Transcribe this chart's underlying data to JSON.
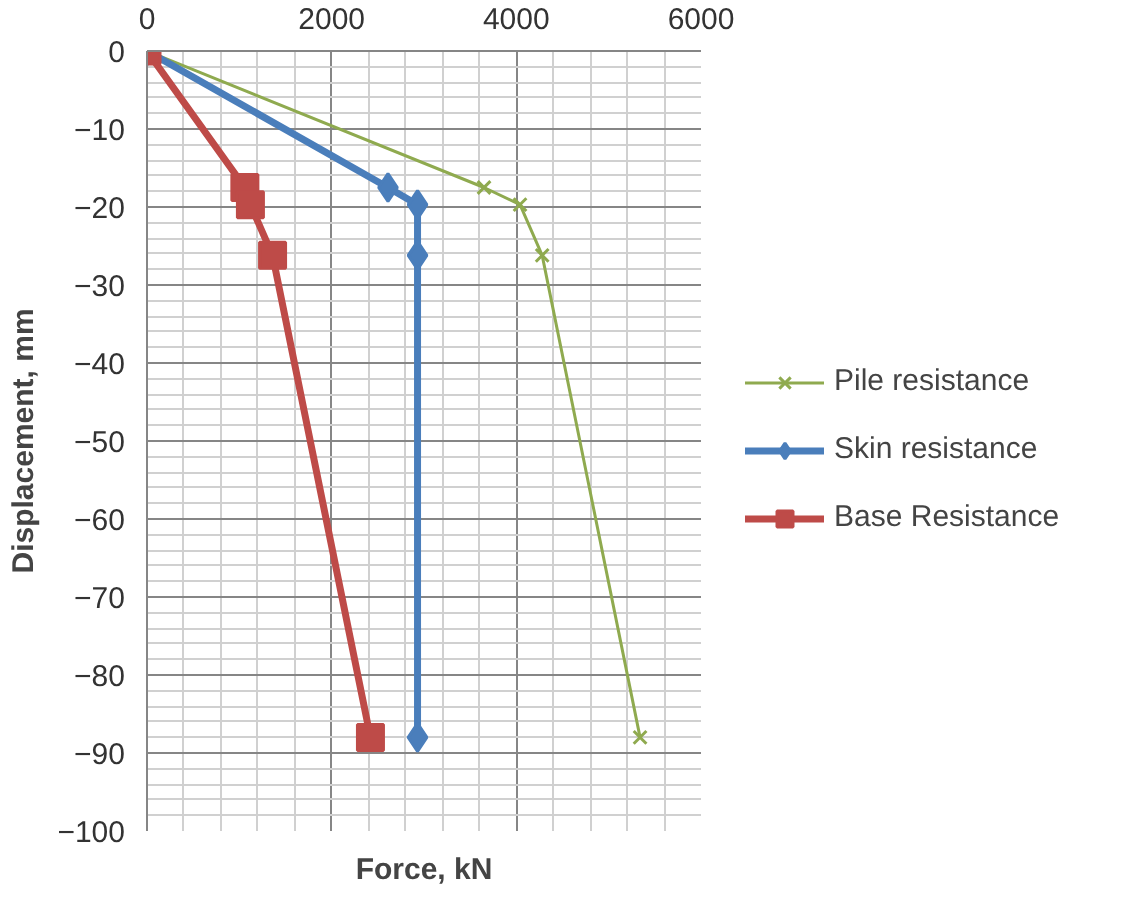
{
  "chart_data": {
    "type": "line",
    "xlabel": "Force, kN",
    "ylabel": "Displacement, mm",
    "xlim": [
      0,
      6000
    ],
    "xticks": [
      0,
      2000,
      4000,
      6000
    ],
    "ylim": [
      -100,
      0
    ],
    "yticks": [
      0,
      -10,
      -20,
      -30,
      -40,
      -50,
      -60,
      -70,
      -80,
      -90,
      -100
    ],
    "grid": true,
    "legend": "right",
    "series": [
      {
        "name": "Pile resistance",
        "color": "#8faa4f",
        "marker": "cross",
        "x": [
          0,
          3650,
          4040,
          4280,
          5340
        ],
        "values": [
          0,
          -17.5,
          -19.7,
          -26.2,
          -88
        ]
      },
      {
        "name": "Skin resistance",
        "color": "#4a7ebb",
        "marker": "diamond",
        "x": [
          0,
          2610,
          2930,
          2930,
          2930
        ],
        "values": [
          0,
          -17.5,
          -19.7,
          -26.2,
          -88
        ]
      },
      {
        "name": "Base Resistance",
        "color": "#be4b48",
        "marker": "square",
        "x": [
          0,
          1060,
          1120,
          1360,
          2420
        ],
        "values": [
          0,
          -17.5,
          -19.7,
          -26.2,
          -88
        ]
      }
    ]
  }
}
